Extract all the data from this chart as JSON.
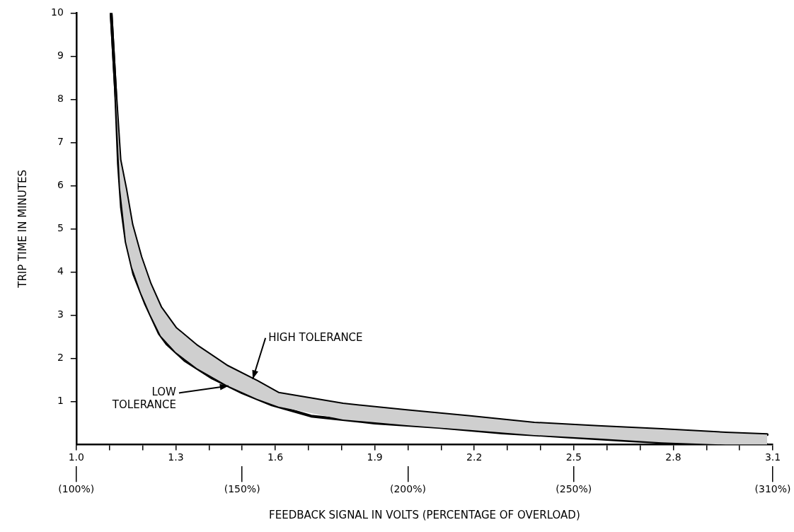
{
  "chart_data": {
    "type": "line",
    "xlabel": "FEEDBACK SIGNAL IN VOLTS (PERCENTAGE OF OVERLOAD)",
    "ylabel": "TRIP TIME IN MINUTES",
    "xlim": [
      1.0,
      3.1
    ],
    "xticks": [
      {
        "value": 1.0,
        "label": "1.0"
      },
      {
        "value": 1.1,
        "label": null
      },
      {
        "value": 1.2,
        "label": null
      },
      1.3,
      {
        "value": 1.4,
        "label": null
      },
      {
        "value": 1.5,
        "label": null
      },
      1.6,
      {
        "value": 1.7,
        "label": null
      },
      {
        "value": 1.8,
        "label": null
      },
      1.9,
      {
        "value": 2.0,
        "label": null
      },
      {
        "value": 2.1,
        "label": null
      },
      2.2,
      {
        "value": 2.3,
        "label": null
      },
      {
        "value": 2.4,
        "label": null
      },
      2.5,
      {
        "value": 2.6,
        "label": null
      },
      {
        "value": 2.7,
        "label": null
      },
      2.8,
      {
        "value": 2.9,
        "label": null
      },
      {
        "value": 3.0,
        "label": null
      },
      3.1
    ],
    "x2lim": [
      1.0,
      3.1
    ],
    "x2ticks": [
      {
        "value": 1.0,
        "label": "(100%)"
      },
      {
        "value": 1.5,
        "label": "(150%)"
      },
      {
        "value": 2.0,
        "label": "(200%)"
      },
      {
        "value": 2.5,
        "label": "(250%)"
      },
      {
        "value": 3.1,
        "label": "(310%)"
      }
    ],
    "ylim": [
      0,
      10
    ],
    "yticks": [
      1,
      2,
      3,
      4,
      5,
      6,
      7,
      8,
      9,
      10
    ],
    "grid": false,
    "legend": false,
    "marker": "none",
    "line_style": "solid",
    "series": [
      {
        "color": "#000000",
        "x": [
          1.105,
          1.118,
          1.132,
          1.15,
          1.168,
          1.195,
          1.223,
          1.255,
          1.3,
          1.364,
          1.455,
          1.545,
          1.61,
          1.804,
          1.996,
          2.188,
          2.381,
          2.573,
          2.765,
          2.958,
          3.083
        ],
        "values": [
          10,
          8.25,
          6.6,
          5.9,
          5.1,
          4.35,
          3.73,
          3.18,
          2.7,
          2.29,
          1.82,
          1.47,
          1.19,
          0.94,
          0.79,
          0.65,
          0.5,
          0.42,
          0.35,
          0.27,
          0.23
        ],
        "lower": [
          10,
          8.25,
          5.95,
          4.7,
          4.11,
          3.52,
          3.02,
          2.52,
          2.14,
          1.77,
          1.37,
          1.06,
          0.88,
          0.58,
          0.45,
          0.34,
          0.22,
          0.14,
          0.05,
          0,
          0
        ],
        "upper": [
          10,
          8.25,
          6.6,
          5.9,
          5.1,
          4.35,
          3.73,
          3.18,
          2.7,
          2.29,
          1.82,
          1.47,
          1.19,
          0.94,
          0.79,
          0.65,
          0.5,
          0.42,
          0.35,
          0.27,
          0.23
        ]
      },
      {
        "color": "#000000",
        "x": [
          1.105,
          1.118,
          1.127,
          1.136,
          1.15,
          1.173,
          1.209,
          1.25,
          1.273,
          1.327,
          1.41,
          1.5,
          1.59,
          1.708,
          1.9,
          2.092,
          2.285,
          2.477,
          2.669,
          2.862,
          3.083
        ],
        "values": [
          10,
          8.25,
          6.5,
          5.5,
          4.7,
          3.95,
          3.25,
          2.57,
          2.33,
          1.95,
          1.54,
          1.2,
          0.92,
          0.66,
          0.5,
          0.4,
          0.27,
          0.18,
          0.09,
          0.01,
          0
        ]
      }
    ],
    "annotations": [
      {
        "text": "HIGH TOLERANCE",
        "x": 1.532,
        "y": 1.52
      },
      {
        "text": "LOW\nTOLERANCE",
        "x": 1.459,
        "y": 1.36
      }
    ]
  }
}
